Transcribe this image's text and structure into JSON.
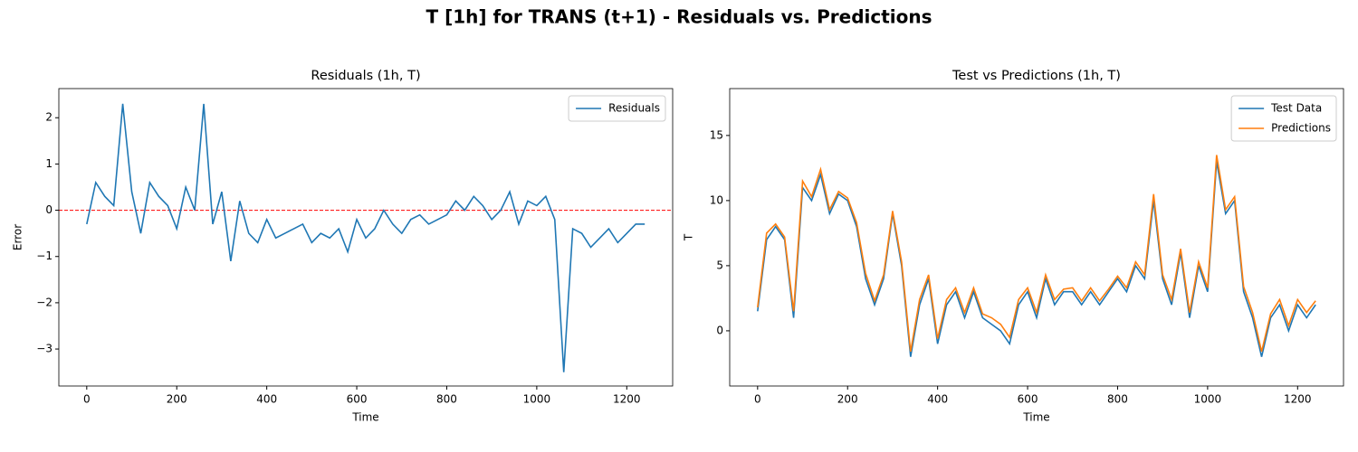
{
  "suptitle": "T [1h] for TRANS (t+1) - Residuals vs. Predictions",
  "chart_data": [
    {
      "type": "line",
      "title": "Residuals (1h, T)",
      "xlabel": "Time",
      "ylabel": "Error",
      "x": [
        0,
        20,
        40,
        60,
        80,
        100,
        120,
        140,
        160,
        180,
        200,
        220,
        240,
        260,
        280,
        300,
        320,
        340,
        360,
        380,
        400,
        420,
        440,
        460,
        480,
        500,
        520,
        540,
        560,
        580,
        600,
        620,
        640,
        660,
        680,
        700,
        720,
        740,
        760,
        780,
        800,
        820,
        840,
        860,
        880,
        900,
        920,
        940,
        960,
        980,
        1000,
        1020,
        1040,
        1060,
        1080,
        1100,
        1120,
        1140,
        1160,
        1180,
        1200,
        1220,
        1240
      ],
      "series": [
        {
          "name": "Residuals",
          "color": "#1f77b4",
          "values": [
            -0.3,
            0.6,
            0.3,
            0.1,
            2.3,
            0.4,
            -0.5,
            0.6,
            0.3,
            0.1,
            -0.4,
            0.5,
            0.0,
            2.3,
            -0.3,
            0.4,
            -1.1,
            0.2,
            -0.5,
            -0.7,
            -0.2,
            -0.6,
            -0.5,
            -0.4,
            -0.3,
            -0.7,
            -0.5,
            -0.6,
            -0.4,
            -0.9,
            -0.2,
            -0.6,
            -0.4,
            0.0,
            -0.3,
            -0.5,
            -0.2,
            -0.1,
            -0.3,
            -0.2,
            -0.1,
            0.2,
            0.0,
            0.3,
            0.1,
            -0.2,
            0.0,
            0.4,
            -0.3,
            0.2,
            0.1,
            0.3,
            -0.2,
            -3.5,
            -0.4,
            -0.5,
            -0.8,
            -0.6,
            -0.4,
            -0.7,
            -0.5,
            -0.3,
            -0.3
          ]
        }
      ],
      "hline": {
        "value": 0,
        "color": "#ff0000"
      },
      "xlim": [
        -62,
        1302
      ],
      "ylim": [
        -3.8,
        2.63
      ],
      "xticks": [
        0,
        200,
        400,
        600,
        800,
        1000,
        1200
      ],
      "yticks": [
        {
          "value": -3,
          "label": "−3"
        },
        {
          "value": -2,
          "label": "−2"
        },
        {
          "value": -1,
          "label": "−1"
        },
        0,
        1,
        2
      ],
      "legend": "upper right"
    },
    {
      "type": "line",
      "title": "Test vs Predictions (1h, T)",
      "xlabel": "Time",
      "ylabel": "T",
      "x": [
        0,
        20,
        40,
        60,
        80,
        100,
        120,
        140,
        160,
        180,
        200,
        220,
        240,
        260,
        280,
        300,
        320,
        340,
        360,
        380,
        400,
        420,
        440,
        460,
        480,
        500,
        520,
        540,
        560,
        580,
        600,
        620,
        640,
        660,
        680,
        700,
        720,
        740,
        760,
        780,
        800,
        820,
        840,
        860,
        880,
        900,
        920,
        940,
        960,
        980,
        1000,
        1020,
        1040,
        1060,
        1080,
        1100,
        1120,
        1140,
        1160,
        1180,
        1200,
        1220,
        1240
      ],
      "series": [
        {
          "name": "Test Data",
          "color": "#1f77b4",
          "values": [
            1.5,
            7,
            8,
            7,
            1,
            11,
            10,
            12,
            9,
            10.5,
            10,
            8,
            4,
            2,
            4,
            9,
            5,
            -2,
            2,
            4,
            -1,
            2,
            3,
            1,
            3,
            1,
            0.5,
            0,
            -1,
            2,
            3,
            1,
            4,
            2,
            3,
            3,
            2,
            3,
            2,
            3,
            4,
            3,
            5,
            4,
            10,
            4,
            2,
            6,
            1,
            5,
            3,
            13,
            9,
            10,
            3,
            1,
            -2,
            1,
            2,
            0,
            2,
            1,
            2
          ]
        },
        {
          "name": "Predictions",
          "color": "#ff7f0e",
          "values": [
            1.8,
            7.5,
            8.2,
            7.2,
            1.5,
            11.5,
            10.3,
            12.4,
            9.3,
            10.7,
            10.2,
            8.3,
            4.4,
            2.3,
            4.3,
            9.2,
            5.3,
            -1.6,
            2.4,
            4.3,
            -0.6,
            2.4,
            3.3,
            1.4,
            3.3,
            1.3,
            1.0,
            0.5,
            -0.5,
            2.4,
            3.3,
            1.4,
            4.3,
            2.4,
            3.2,
            3.3,
            2.3,
            3.3,
            2.3,
            3.2,
            4.2,
            3.3,
            5.3,
            4.3,
            10.5,
            4.3,
            2.4,
            6.3,
            1.4,
            5.3,
            3.3,
            13.5,
            9.3,
            10.3,
            3.4,
            1.4,
            -1.6,
            1.3,
            2.4,
            0.4,
            2.4,
            1.4,
            2.3
          ]
        }
      ],
      "xlim": [
        -62,
        1302
      ],
      "ylim": [
        -4.24,
        18.6
      ],
      "xticks": [
        0,
        200,
        400,
        600,
        800,
        1000,
        1200
      ],
      "yticks": [
        0,
        5,
        10,
        15
      ],
      "legend": "upper right"
    }
  ]
}
